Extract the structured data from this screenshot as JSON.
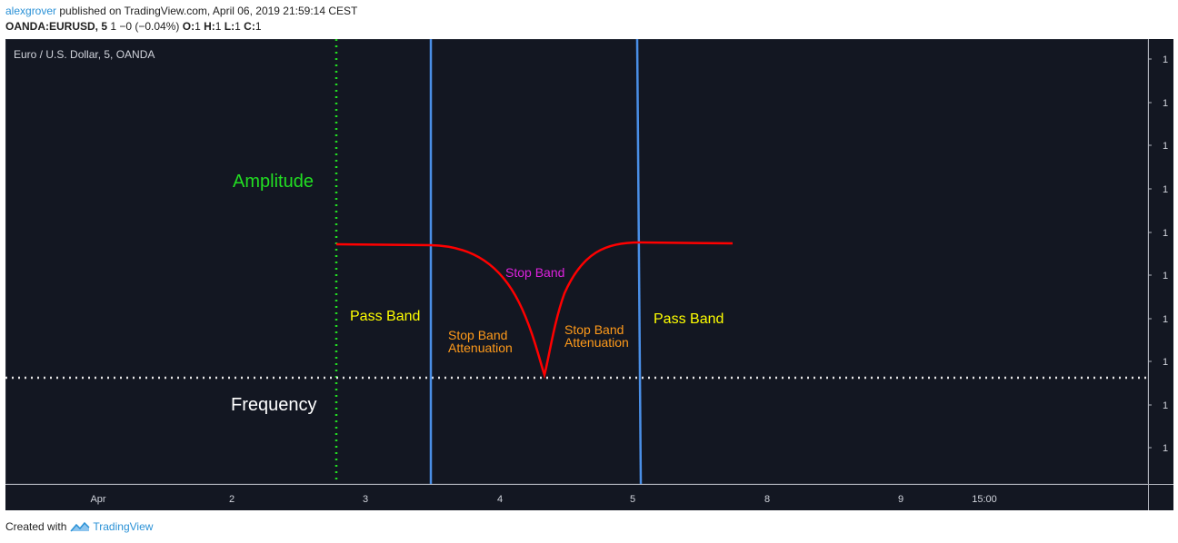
{
  "header": {
    "author": "alexgrover",
    "published_text": " published on TradingView.com, April 06, 2019 21:59:14 CEST",
    "symbol": "OANDA:EURUSD, 5",
    "change": " 1 −0 (−0.04%) ",
    "o_label": "O:",
    "o_value": "1",
    "h_label": " H:",
    "h_value": "1",
    "l_label": " L:",
    "l_value": "1",
    "c_label": " C:",
    "c_value": "1"
  },
  "chart": {
    "series_title": "Euro / U.S. Dollar, 5, OANDA",
    "background": "#131722",
    "price_ticks": [
      "1",
      "1",
      "1",
      "1",
      "1",
      "1",
      "1",
      "1",
      "1",
      "1"
    ],
    "time_ticks": [
      "Apr",
      "2",
      "3",
      "4",
      "5",
      "8",
      "9",
      "15:00"
    ],
    "annotations": {
      "amplitude": "Amplitude",
      "frequency": "Frequency",
      "pass_band_left": "Pass Band",
      "pass_band_right": "Pass Band",
      "stop_band": "Stop Band",
      "stop_band_atten_left_1": "Stop Band",
      "stop_band_atten_left_2": "Attenuation",
      "stop_band_atten_right_1": "Stop Band",
      "stop_band_atten_right_2": "Attenuation"
    },
    "colors": {
      "curve": "#ff0000",
      "cutoff_lines": "#4a8fe7",
      "amplitude_axis": "#22dd22",
      "frequency_axis": "#e6e6e6",
      "pass_band_text": "#ffff00",
      "attenuation_text": "#ff9a1a",
      "stop_band_text": "#dd22dd"
    }
  },
  "footer": {
    "created_with": "Created with",
    "brand": "TradingView"
  }
}
